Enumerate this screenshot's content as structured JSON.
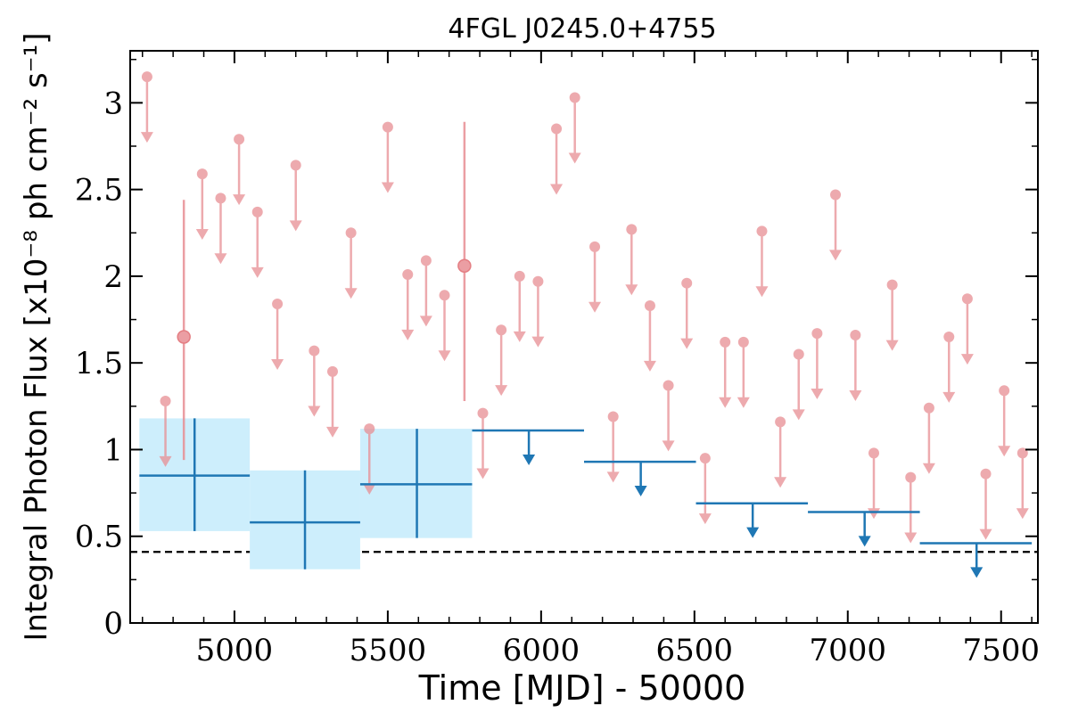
{
  "chart_data": {
    "type": "scatter",
    "title": "4FGL J0245.0+4755",
    "xlabel": "Time [MJD] - 50000",
    "ylabel": "Integral Photon Flux [x10⁻⁸ ph cm⁻² s⁻¹]",
    "xlim": [
      4660,
      7620
    ],
    "ylim": [
      0,
      3.3
    ],
    "x_ticks": [
      5000,
      5500,
      6000,
      6500,
      7000,
      7500
    ],
    "x_tick_labels": [
      "5000",
      "5500",
      "6000",
      "6500",
      "7000",
      "7500"
    ],
    "y_ticks": [
      0,
      0.5,
      1,
      1.5,
      2,
      2.5,
      3
    ],
    "y_tick_labels": [
      "0",
      "0.5",
      "1",
      "1.5",
      "2",
      "2.5",
      "3"
    ],
    "grid": false,
    "legend": "none",
    "reference_line": {
      "y": 0.41,
      "style": "dashed"
    },
    "series": [
      {
        "kind": "upper-limit-points",
        "color": "#e88e93",
        "arrow_length": 0.38,
        "points": [
          {
            "x": 4715,
            "y": 3.15
          },
          {
            "x": 4775,
            "y": 1.28
          },
          {
            "x": 4895,
            "y": 2.59
          },
          {
            "x": 4955,
            "y": 2.45
          },
          {
            "x": 5015,
            "y": 2.79
          },
          {
            "x": 5075,
            "y": 2.37
          },
          {
            "x": 5140,
            "y": 1.84
          },
          {
            "x": 5200,
            "y": 2.64
          },
          {
            "x": 5260,
            "y": 1.57
          },
          {
            "x": 5320,
            "y": 1.45
          },
          {
            "x": 5380,
            "y": 2.25
          },
          {
            "x": 5440,
            "y": 1.12
          },
          {
            "x": 5500,
            "y": 2.86
          },
          {
            "x": 5565,
            "y": 2.01
          },
          {
            "x": 5625,
            "y": 2.09
          },
          {
            "x": 5685,
            "y": 1.89
          },
          {
            "x": 5810,
            "y": 1.21
          },
          {
            "x": 5870,
            "y": 1.69
          },
          {
            "x": 5930,
            "y": 2.0
          },
          {
            "x": 5990,
            "y": 1.97
          },
          {
            "x": 6050,
            "y": 2.85
          },
          {
            "x": 6110,
            "y": 3.03
          },
          {
            "x": 6175,
            "y": 2.17
          },
          {
            "x": 6235,
            "y": 1.19
          },
          {
            "x": 6295,
            "y": 2.27
          },
          {
            "x": 6355,
            "y": 1.83
          },
          {
            "x": 6415,
            "y": 1.37
          },
          {
            "x": 6475,
            "y": 1.96
          },
          {
            "x": 6535,
            "y": 0.95
          },
          {
            "x": 6600,
            "y": 1.62
          },
          {
            "x": 6660,
            "y": 1.62
          },
          {
            "x": 6720,
            "y": 2.26
          },
          {
            "x": 6780,
            "y": 1.16
          },
          {
            "x": 6840,
            "y": 1.55
          },
          {
            "x": 6900,
            "y": 1.67
          },
          {
            "x": 6960,
            "y": 2.47
          },
          {
            "x": 7025,
            "y": 1.66
          },
          {
            "x": 7085,
            "y": 0.98
          },
          {
            "x": 7145,
            "y": 1.95
          },
          {
            "x": 7205,
            "y": 0.84
          },
          {
            "x": 7265,
            "y": 1.24
          },
          {
            "x": 7330,
            "y": 1.65
          },
          {
            "x": 7390,
            "y": 1.87
          },
          {
            "x": 7450,
            "y": 0.86
          },
          {
            "x": 7510,
            "y": 1.34
          },
          {
            "x": 7570,
            "y": 0.98
          }
        ]
      },
      {
        "kind": "detection-points",
        "color": "#e0686e",
        "points": [
          {
            "x": 4835,
            "y": 1.65,
            "y_low": 0.94,
            "y_high": 2.44
          },
          {
            "x": 5750,
            "y": 2.06,
            "y_low": 1.28,
            "y_high": 2.89
          }
        ]
      },
      {
        "kind": "binned-detections",
        "color": "#1f77b4",
        "band_color": "#cdeefc",
        "bins": [
          {
            "x_start": 4690,
            "x_end": 5050,
            "x_center": 4870,
            "y": 0.85,
            "y_low": 0.53,
            "y_high": 1.18
          },
          {
            "x_start": 5050,
            "x_end": 5410,
            "x_center": 5230,
            "y": 0.58,
            "y_low": 0.31,
            "y_high": 0.88
          },
          {
            "x_start": 5410,
            "x_end": 5775,
            "x_center": 5595,
            "y": 0.8,
            "y_low": 0.49,
            "y_high": 1.12
          }
        ]
      },
      {
        "kind": "binned-upper-limits",
        "color": "#1f77b4",
        "arrow_length": 0.2,
        "bins": [
          {
            "x_start": 5775,
            "x_end": 6140,
            "x_center": 5960,
            "y": 1.11
          },
          {
            "x_start": 6140,
            "x_end": 6505,
            "x_center": 6325,
            "y": 0.93
          },
          {
            "x_start": 6505,
            "x_end": 6870,
            "x_center": 6690,
            "y": 0.69
          },
          {
            "x_start": 6870,
            "x_end": 7235,
            "x_center": 7055,
            "y": 0.64
          },
          {
            "x_start": 7235,
            "x_end": 7600,
            "x_center": 7420,
            "y": 0.46
          }
        ]
      }
    ]
  }
}
